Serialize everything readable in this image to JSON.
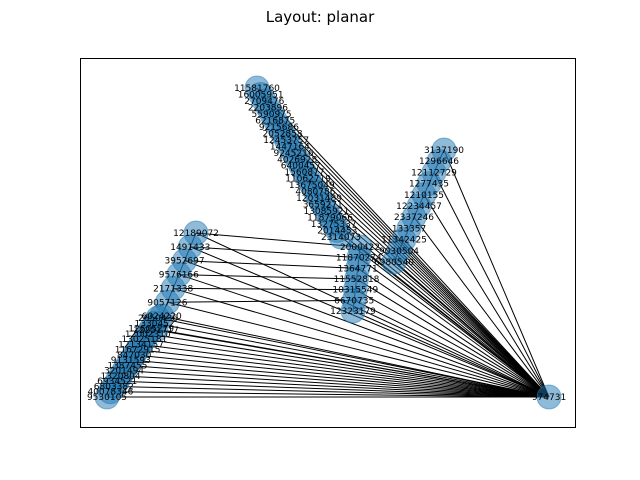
{
  "title": "Layout: planar",
  "graph": {
    "hub": "974731",
    "clusters": [
      {
        "labels": [
          "11581760",
          "16005951",
          "2709476",
          "2203896",
          "5590975",
          "6216875",
          "9215686",
          "2052858",
          "12453757",
          "1447164",
          "9245216",
          "4026928",
          "6400457",
          "1560877",
          "11062719",
          "13675049",
          "4080786",
          "12031489",
          "3659271",
          "13085921",
          "11879066",
          "13275337",
          "2014453",
          "2314073"
        ],
        "leaves": true
      },
      {
        "labels": [
          "3137190",
          "1296646",
          "12112729",
          "1277435",
          "1210155",
          "12234457",
          "2337246",
          "133357",
          "11342425",
          "9030504",
          "6980540"
        ],
        "leaves": true
      },
      {
        "labels": [
          "2000422",
          "11870274",
          "1364771",
          "11552818",
          "10315549",
          "6670735",
          "12323179"
        ],
        "leaves": false
      },
      {
        "labels": [
          "12189072",
          "1491433",
          "3952697",
          "9576166",
          "2171338",
          "9057126",
          "6024220",
          "12251717"
        ],
        "leaves": false
      },
      {
        "labels": [
          "2650436",
          "1330452",
          "12605279",
          "12002310",
          "13025181",
          "12134157",
          "11672915",
          "847030",
          "9131593",
          "1387455",
          "3201494",
          "1320804",
          "6934521",
          "6803382",
          "40078346",
          "9530105"
        ],
        "leaves": false
      }
    ]
  }
}
